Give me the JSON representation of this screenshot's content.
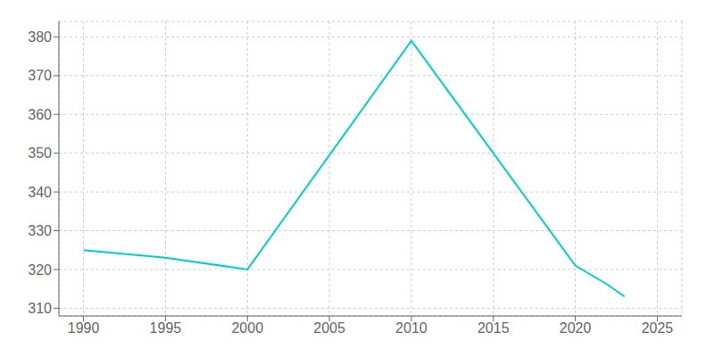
{
  "chart_data": {
    "type": "line",
    "x": [
      1990,
      1995,
      2000,
      2010,
      2020,
      2022,
      2023
    ],
    "values": [
      325,
      323,
      320,
      379,
      321,
      316,
      313
    ],
    "color": "#00CED1",
    "xlim": [
      1988.5,
      2026.5
    ],
    "ylim": [
      308,
      384
    ],
    "xticks": [
      1990,
      1995,
      2000,
      2005,
      2010,
      2015,
      2020,
      2025
    ],
    "yticks": [
      310,
      320,
      330,
      340,
      350,
      360,
      370,
      380
    ],
    "grid": true
  }
}
